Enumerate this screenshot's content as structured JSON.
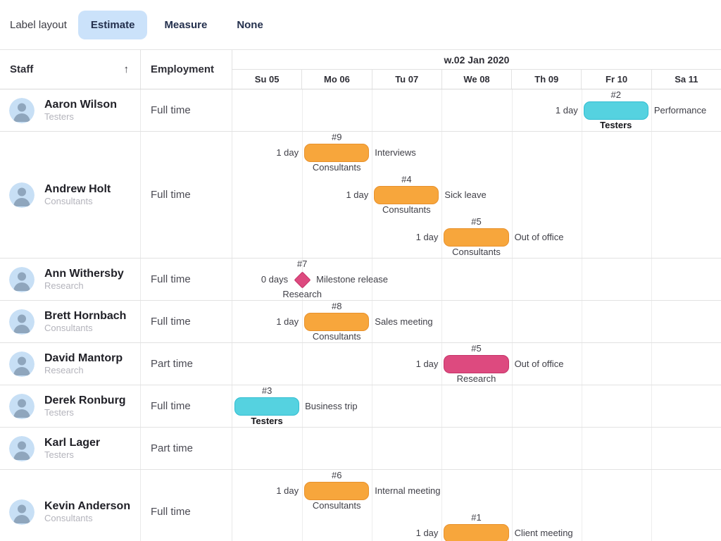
{
  "toolbar": {
    "label": "Label layout",
    "buttons": [
      {
        "label": "Estimate",
        "active": true
      },
      {
        "label": "Measure",
        "active": false
      },
      {
        "label": "None",
        "active": false
      }
    ]
  },
  "grid": {
    "staff_header": "Staff",
    "sort_icon": "↑",
    "employment_header": "Employment"
  },
  "timeline": {
    "week_label": "w.02 Jan 2020",
    "days": [
      "Su 05",
      "Mo 06",
      "Tu 07",
      "We 08",
      "Th 09",
      "Fr 10",
      "Sa 11"
    ]
  },
  "colors": {
    "orange": {
      "fill": "#F7A63C",
      "border": "#E8912C"
    },
    "cyan": {
      "fill": "#55D2E0",
      "border": "#31BDD1"
    },
    "pink": {
      "fill": "#DD4A7F",
      "border": "#C53368"
    },
    "active_button_bg": "#CBE2FA",
    "avatar_bg": "#C7DFF5",
    "avatar_fg": "#8FA6BD"
  },
  "rows": [
    {
      "name": "Aaron Wilson",
      "team": "Testers",
      "employment": "Full time",
      "lines": [
        {
          "id": "#2",
          "duration": "1 day",
          "task": "Performance",
          "team_label": "Testers",
          "team_bold": true,
          "color": "cyan",
          "shape": "bar",
          "day_index": 5
        }
      ]
    },
    {
      "name": "Andrew Holt",
      "team": "Consultants",
      "employment": "Full time",
      "lines": [
        {
          "id": "#9",
          "duration": "1 day",
          "task": "Interviews",
          "team_label": "Consultants",
          "team_bold": false,
          "color": "orange",
          "shape": "bar",
          "day_index": 1
        },
        {
          "id": "#4",
          "duration": "1 day",
          "task": "Sick leave",
          "team_label": "Consultants",
          "team_bold": false,
          "color": "orange",
          "shape": "bar",
          "day_index": 2
        },
        {
          "id": "#5",
          "duration": "1 day",
          "task": "Out of office",
          "team_label": "Consultants",
          "team_bold": false,
          "color": "orange",
          "shape": "bar",
          "day_index": 3
        }
      ]
    },
    {
      "name": "Ann Withersby",
      "team": "Research",
      "employment": "Full time",
      "lines": [
        {
          "id": "#7",
          "duration": "0 days",
          "task": "Milestone release",
          "team_label": "Research",
          "team_bold": false,
          "color": "pink",
          "shape": "milestone",
          "day_index": 1
        }
      ]
    },
    {
      "name": "Brett Hornbach",
      "team": "Consultants",
      "employment": "Full time",
      "lines": [
        {
          "id": "#8",
          "duration": "1 day",
          "task": "Sales meeting",
          "team_label": "Consultants",
          "team_bold": false,
          "color": "orange",
          "shape": "bar",
          "day_index": 1
        }
      ]
    },
    {
      "name": "David Mantorp",
      "team": "Research",
      "employment": "Part time",
      "lines": [
        {
          "id": "#5",
          "duration": "1 day",
          "task": "Out of office",
          "team_label": "Research",
          "team_bold": false,
          "color": "pink",
          "shape": "bar",
          "day_index": 3
        }
      ]
    },
    {
      "name": "Derek Ronburg",
      "team": "Testers",
      "employment": "Full time",
      "lines": [
        {
          "id": "#3",
          "duration": "",
          "task": "Business trip",
          "team_label": "Testers",
          "team_bold": true,
          "color": "cyan",
          "shape": "bar",
          "day_index": 0
        }
      ]
    },
    {
      "name": "Karl Lager",
      "team": "Testers",
      "employment": "Part time",
      "lines": []
    },
    {
      "name": "Kevin Anderson",
      "team": "Consultants",
      "employment": "Full time",
      "lines": [
        {
          "id": "#6",
          "duration": "1 day",
          "task": "Internal meeting",
          "team_label": "Consultants",
          "team_bold": false,
          "color": "orange",
          "shape": "bar",
          "day_index": 1
        },
        {
          "id": "#1",
          "duration": "1 day",
          "task": "Client meeting",
          "team_label": "",
          "team_bold": false,
          "color": "orange",
          "shape": "bar",
          "day_index": 3
        }
      ]
    }
  ]
}
